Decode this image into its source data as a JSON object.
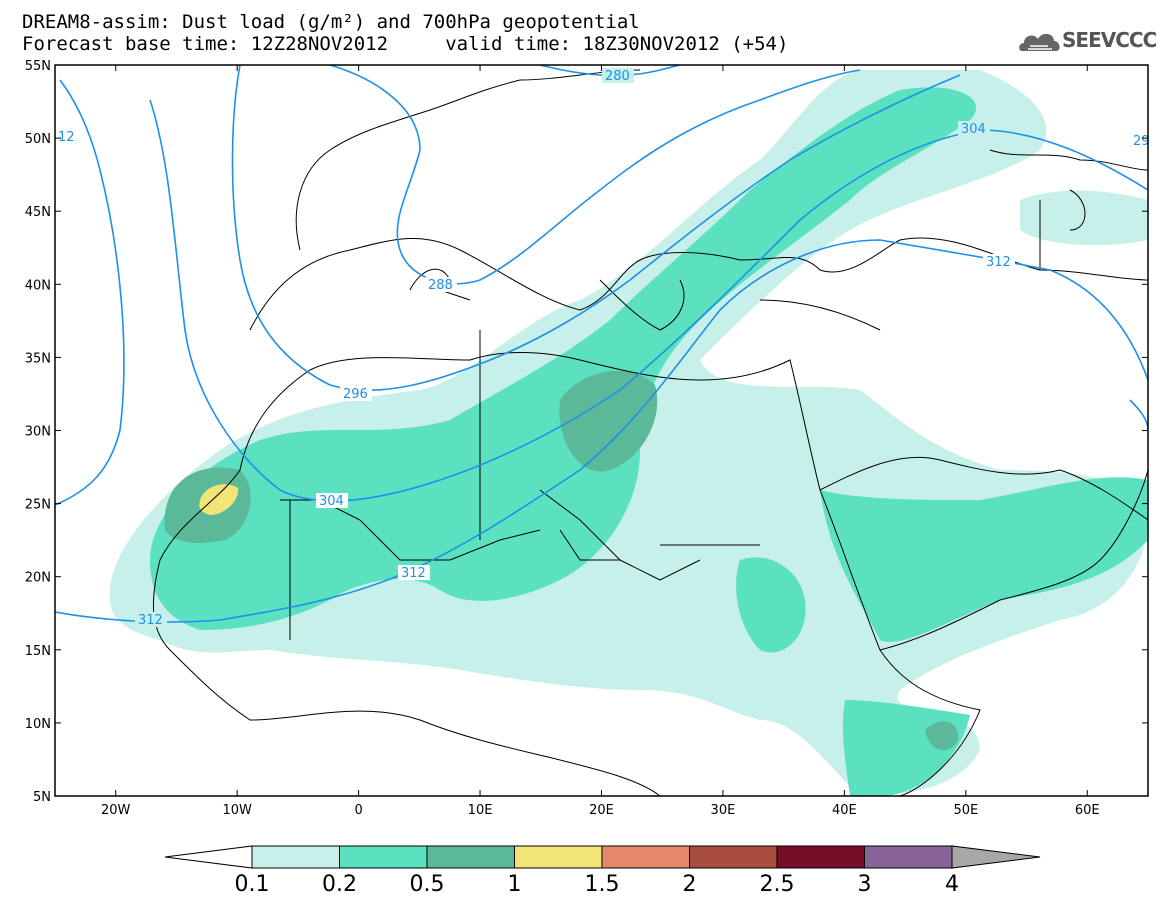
{
  "title": {
    "line1": "DREAM8-assim: Dust load (g/m²) and 700hPa geopotential",
    "line2": "Forecast base time: 12Z28NOV2012     valid time: 18Z30NOV2012 (+54)"
  },
  "logo": {
    "text": "SEEVCCC",
    "icon": "cloud-icon"
  },
  "axes": {
    "lat_labels": [
      "55N",
      "50N",
      "45N",
      "40N",
      "35N",
      "30N",
      "25N",
      "20N",
      "15N",
      "10N",
      "5N"
    ],
    "lon_labels": [
      "20W",
      "10W",
      "0",
      "10E",
      "20E",
      "30E",
      "40E",
      "50E",
      "60E"
    ],
    "lat_range": [
      5,
      55
    ],
    "lon_range": [
      -25,
      65
    ]
  },
  "contour_labels": [
    "280",
    "288",
    "296",
    "304",
    "304",
    "312",
    "312",
    "312",
    "12",
    "29"
  ],
  "colorbar": {
    "labels": [
      "0.1",
      "0.2",
      "0.5",
      "1",
      "1.5",
      "2",
      "2.5",
      "3",
      "4"
    ],
    "colors": [
      "#c6f0e9",
      "#5ce1c0",
      "#5bb999",
      "#f2e476",
      "#e8896a",
      "#a94d3f",
      "#780d29",
      "#86649a"
    ],
    "low_color": "#ffffff",
    "high_color": "#a8a8a8"
  }
}
